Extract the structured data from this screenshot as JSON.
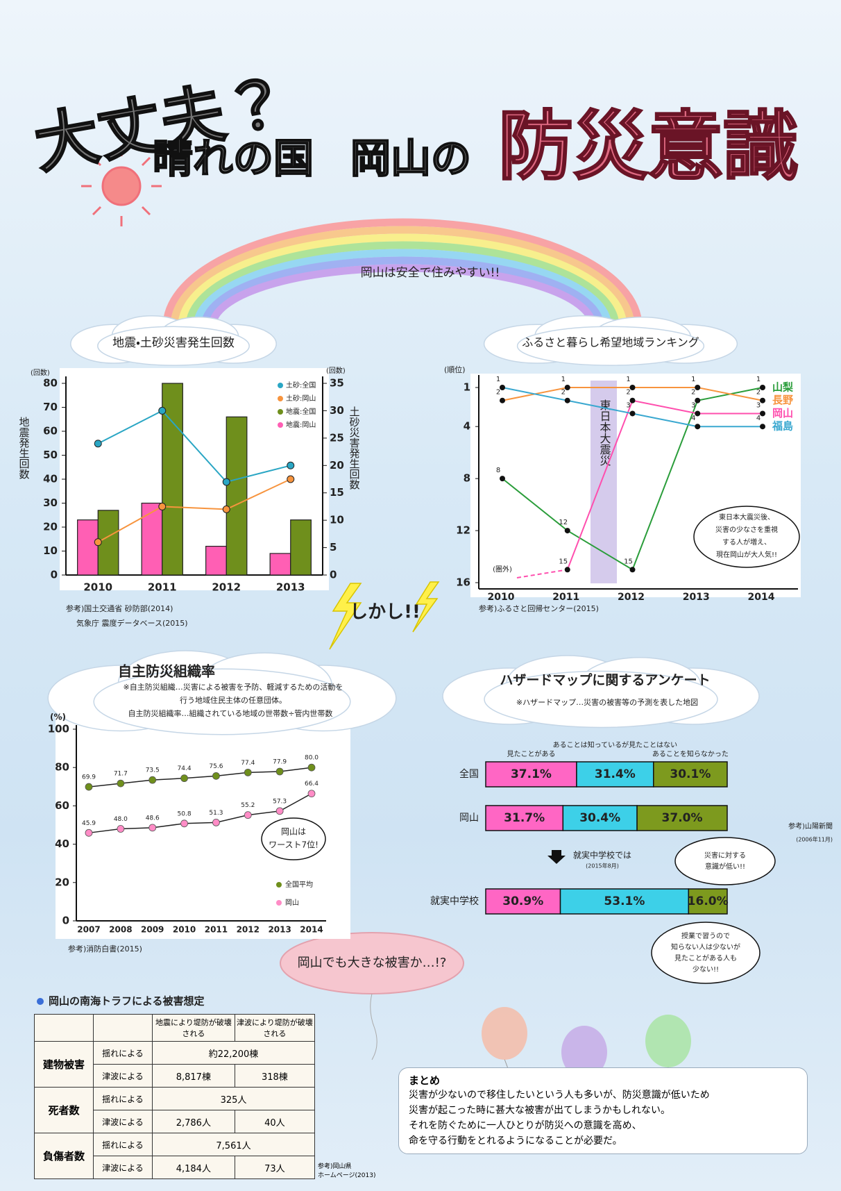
{
  "title": {
    "line1": "大丈夫？",
    "line2": "晴れの国",
    "line3": "岡山の",
    "line4": "防災意識"
  },
  "rainbow_text": "岡山は安全で住みやすい!!",
  "however": "しかし!!",
  "warning": "岡山でも大きな被害か…!?",
  "chart_data": [
    {
      "type": "combo",
      "title": "地震・土砂災害発生回数",
      "categories": [
        "2010",
        "2011",
        "2012",
        "2013"
      ],
      "ylabel_unit": "(回数)",
      "ylabel": "地震発生回数",
      "y2label_unit": "(回数)",
      "y2label": "土砂災害発生回数",
      "ylim": [
        0,
        80
      ],
      "yticks": [
        0,
        10,
        20,
        30,
        40,
        50,
        60,
        70,
        80
      ],
      "y2lim": [
        0,
        35
      ],
      "y2ticks": [
        0,
        5,
        10,
        15,
        20,
        25,
        30,
        35
      ],
      "series": [
        {
          "name": "土砂:全国",
          "color": "#2aa6c4",
          "kind": "line",
          "axis": "y2",
          "values": [
            24,
            30,
            17,
            20
          ]
        },
        {
          "name": "土砂:岡山",
          "color": "#f7943e",
          "kind": "line",
          "axis": "y2",
          "values": [
            6,
            12.5,
            12,
            17.5
          ]
        },
        {
          "name": "地震:全国",
          "color": "#6f8f1c",
          "kind": "bar",
          "values": [
            27,
            80,
            66,
            23
          ]
        },
        {
          "name": "地震:岡山",
          "color": "#ff5fb4",
          "kind": "bar",
          "values": [
            23,
            30,
            12,
            9
          ]
        }
      ],
      "source": [
        "参考)国土交通省 砂防部(2014)",
        "気象庁 震度データベース(2015)"
      ]
    },
    {
      "type": "line",
      "title": "ふるさと暮らし希望地域ランキング",
      "ylabel": "(順位)",
      "x": [
        "2010",
        "2011",
        "2012",
        "2013",
        "2014"
      ],
      "ylim": [
        16,
        1
      ],
      "yticks": [
        1,
        4,
        8,
        12,
        16
      ],
      "series": [
        {
          "name": "山梨",
          "color": "#2a9d3a",
          "values": [
            8,
            12,
            15,
            2,
            1
          ]
        },
        {
          "name": "長野",
          "color": "#f7943e",
          "values": [
            2,
            1,
            1,
            1,
            2
          ]
        },
        {
          "name": "岡山",
          "color": "#ff4fae",
          "values": [
            null,
            15,
            2,
            3,
            3
          ]
        },
        {
          "name": "福島",
          "color": "#3aa8d0",
          "values": [
            1,
            2,
            3,
            4,
            4
          ]
        }
      ],
      "out_of_rank_label": "(圏外)",
      "event_label": "東日本大震災",
      "note": [
        "東日本大震災後、",
        "災害の少なさを重視",
        "する人が増え、",
        "現在岡山が大人気!!"
      ],
      "source": "参考)ふるさと回帰センター(2015)"
    },
    {
      "type": "line",
      "title": "自主防災組織率",
      "notes": [
        "※自主防災組織…災害による被害を予防、軽減するための活動を",
        "行う地域住民主体の任意団体。",
        "自主防災組織率…組織されている地域の世帯数÷管内世帯数"
      ],
      "ylabel": "(%)",
      "x": [
        "2007",
        "2008",
        "2009",
        "2010",
        "2011",
        "2012",
        "2013",
        "2014"
      ],
      "ylim": [
        0,
        100
      ],
      "yticks": [
        0,
        20,
        40,
        60,
        80,
        100
      ],
      "series": [
        {
          "name": "全国平均",
          "color": "#6f8f1c",
          "values": [
            69.9,
            71.7,
            73.5,
            74.4,
            75.6,
            77.4,
            77.9,
            80
          ],
          "value_labels": [
            "69.9",
            "71.7",
            "73.5",
            "74.4",
            "75.6",
            "77.4",
            "77.9",
            "80.0"
          ]
        },
        {
          "name": "岡山",
          "color": "#ff8cc6",
          "values": [
            45.9,
            48,
            48.6,
            50.8,
            51.3,
            55.2,
            57.3,
            66.4
          ],
          "value_labels": [
            "45.9",
            "48.0",
            "48.6",
            "50.8",
            "51.3",
            "55.2",
            "57.3",
            "66.4"
          ]
        }
      ],
      "annotation": [
        "岡山は",
        "ワースト7位!"
      ],
      "source": "参考)消防白書(2015)"
    },
    {
      "type": "stacked_hbar",
      "title": "ハザードマップに関するアンケート",
      "note": "※ハザードマップ…災害の被害等の予測を表した地図",
      "categories": [
        "全国",
        "岡山",
        "就実中学校"
      ],
      "series": [
        {
          "name": "見たことがある",
          "color": "#ff66c4",
          "values": [
            37.1,
            31.7,
            30.9
          ],
          "value_labels": [
            "37.1%",
            "31.7%",
            "30.9%"
          ]
        },
        {
          "name": "あることは知っているが見たことはない",
          "color": "#3dd0e8",
          "values": [
            31.4,
            30.4,
            53.1
          ],
          "value_labels": [
            "31.4%",
            "30.4%",
            "53.1%"
          ]
        },
        {
          "name": "あることを知らなかった",
          "color": "#7d9a1e",
          "values": [
            30.1,
            37.0,
            16.0
          ],
          "value_labels": [
            "30.1%",
            "37.0%",
            "16.0%"
          ]
        }
      ],
      "source": [
        "参考)山陽新聞",
        "(2006年11月)"
      ],
      "school_heading": [
        "就実中学校では",
        "(2015年8月)"
      ],
      "annotations": [
        [
          "災害に対する",
          "意識が低い!!"
        ],
        [
          "授業で習うので",
          "知らない人は少ないが",
          "見たことがある人も",
          "少ない!!"
        ]
      ]
    }
  ],
  "damage_table": {
    "title": "岡山の南海トラフによる被害想定",
    "headers": [
      "地震により堤防が破壊される",
      "津波により堤防が破壊される"
    ],
    "rows": [
      {
        "group": "建物被害",
        "cause": "揺れによる",
        "values": [
          "約22,200棟"
        ]
      },
      {
        "cause": "津波による",
        "values": [
          "8,817棟",
          "318棟"
        ]
      },
      {
        "group": "死者数",
        "cause": "揺れによる",
        "values": [
          "325人"
        ]
      },
      {
        "cause": "津波による",
        "values": [
          "2,786人",
          "40人"
        ]
      },
      {
        "group": "負傷者数",
        "cause": "揺れによる",
        "values": [
          "7,561人"
        ]
      },
      {
        "cause": "津波による",
        "values": [
          "4,184人",
          "73人"
        ]
      }
    ],
    "source": [
      "参考)岡山県",
      "ホームページ(2013)"
    ]
  },
  "summary": {
    "title": "まとめ",
    "lines": [
      "災害が少ないので移住したいという人も多いが、防災意識が低いため",
      "災害が起こった時に甚大な被害が出てしまうかもしれない。",
      "それを防ぐために一人ひとりが防災への意識を高め、",
      "命を守る行動をとれるようになることが必要だ。"
    ]
  }
}
